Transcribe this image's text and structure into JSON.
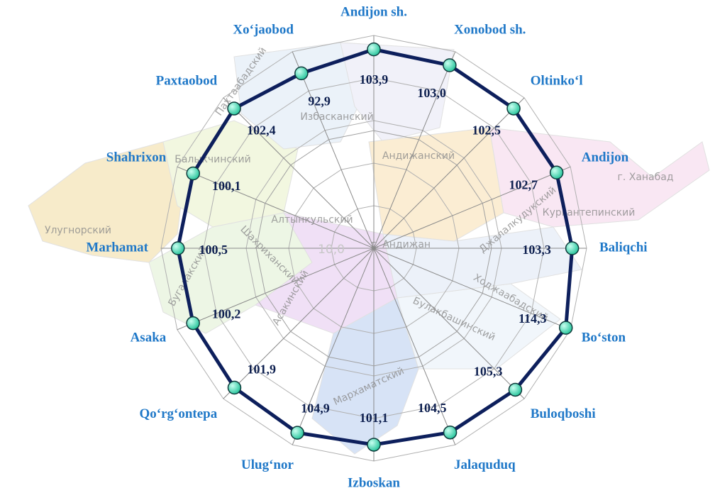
{
  "chart_data": {
    "type": "radar",
    "categories": [
      "Andijon sh.",
      "Xonobod sh.",
      "Oltinko‘l",
      "Andijon",
      "Baliqchi",
      "Bo‘ston",
      "Buloqboshi",
      "Jalaquduq",
      "Izboskan",
      "Ulug‘nor",
      "Qo‘rg‘ontepa",
      "Asaka",
      "Marhamat",
      "Shahrixon",
      "Paxtaobod",
      "Xo‘jaobod"
    ],
    "series": [
      {
        "color": "#0d1f5c",
        "marker_color": "#2fc8a0",
        "values": [
          103.9,
          103.0,
          102.5,
          102.7,
          103.3,
          114.3,
          105.3,
          104.5,
          101.1,
          104.9,
          101.9,
          100.2,
          100.5,
          100.1,
          102.4,
          92.9
        ],
        "value_labels": [
          "103,9",
          "103,0",
          "102,5",
          "102,7",
          "103,3",
          "114,3",
          "105,3",
          "104,5",
          "101,1",
          "104,9",
          "101,9",
          "100,2",
          "100,5",
          "100,1",
          "102,4",
          "92,9"
        ]
      }
    ],
    "rlim": [
      -126,
      120
    ],
    "rticks": [
      {
        "value": 10,
        "label": "10,0"
      }
    ]
  },
  "map_labels": [
    "Пахтаабадский",
    "Избасканский",
    "Балыкчинский",
    "Андижанский",
    "Алтынкульский",
    "г. Андижан",
    "Улугнорский",
    "Кургантепинский",
    "г. Ханабад",
    "Джалалкудукский",
    "Шахриханский",
    "Ходжаабадский",
    "Булакбашинский",
    "Бугалакский",
    "Асакинский",
    "Мархаматский"
  ]
}
